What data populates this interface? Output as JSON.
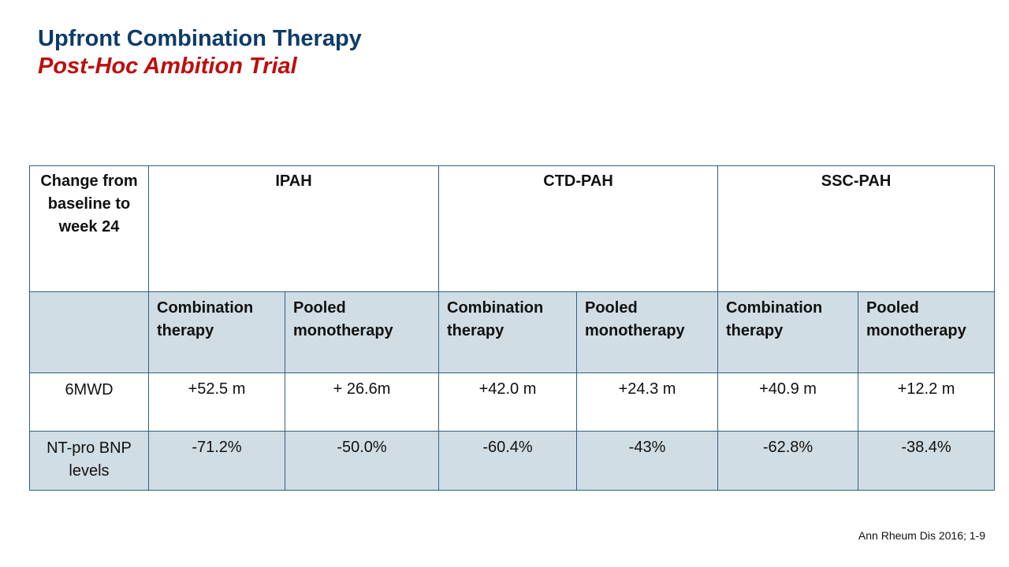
{
  "slide": {
    "title": "Upfront Combination Therapy",
    "subtitle": "Post-Hoc Ambition Trial",
    "citation": "Ann Rheum Dis 2016; 1-9"
  },
  "table": {
    "corner_label": "Change from baseline to week 24",
    "groups": [
      "IPAH",
      "CTD-PAH",
      "SSC-PAH"
    ],
    "subheaders": [
      "Combination therapy",
      "Pooled monotherapy",
      "Combination therapy",
      "Pooled monotherapy",
      "Combination therapy",
      "Pooled monotherapy"
    ],
    "rows": [
      {
        "label": "6MWD",
        "values": [
          "+52.5 m",
          "+ 26.6m",
          "+42.0 m",
          "+24.3 m",
          "+40.9 m",
          "+12.2 m"
        ]
      },
      {
        "label": "NT-pro BNP levels",
        "values": [
          "-71.2%",
          "-50.0%",
          "-60.4%",
          "-43%",
          "-62.8%",
          "-38.4%"
        ]
      }
    ]
  },
  "colors": {
    "title": "#0e3b6a",
    "subtitle": "#bf0d0d",
    "table_border": "#2f6283",
    "shaded_row": "#d0dde4"
  }
}
